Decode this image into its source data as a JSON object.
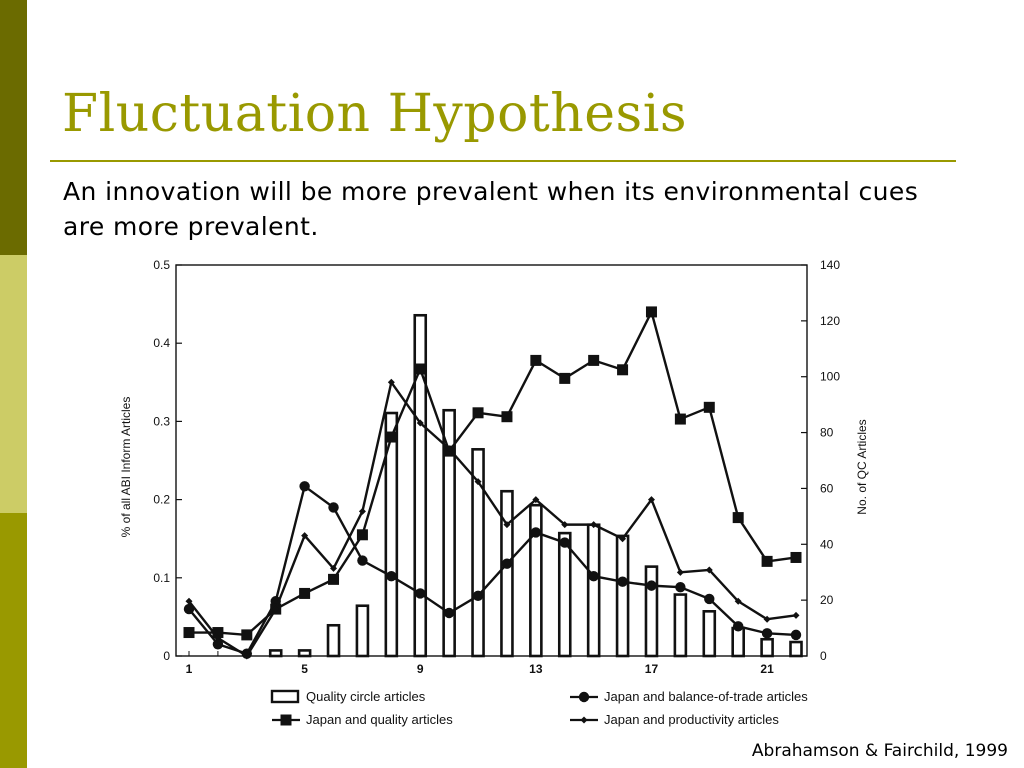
{
  "slide": {
    "title": "Fluctuation Hypothesis",
    "subtitle": "An innovation will be more prevalent when its environmental cues are more prevalent.",
    "source": "Abrahamson & Fairchild, 1999",
    "accent_color": "#999900",
    "band_colors": [
      "#6b6b00",
      "#cccc66",
      "#999900"
    ]
  },
  "chart_data": {
    "type": "bar",
    "title": "",
    "x": [
      1,
      2,
      3,
      4,
      5,
      6,
      7,
      8,
      9,
      10,
      11,
      12,
      13,
      14,
      15,
      16,
      17,
      18,
      19,
      20,
      21,
      22
    ],
    "x_ticks": [
      1,
      5,
      9,
      13,
      17,
      21
    ],
    "xlim": [
      1,
      22
    ],
    "ylabel": "% of all ABI Inform Articles",
    "ylim": [
      0,
      0.5
    ],
    "y_ticks": [
      0,
      0.1,
      0.2,
      0.3,
      0.4,
      0.5
    ],
    "y2label": "No. of QC Articles",
    "y2lim": [
      0,
      140
    ],
    "y2_ticks": [
      0,
      20,
      40,
      60,
      80,
      100,
      120,
      140
    ],
    "grid": false,
    "legend_position": "bottom",
    "series": [
      {
        "name": "Quality circle articles",
        "kind": "bar",
        "axis": "right",
        "values": [
          0,
          0,
          0,
          2,
          2,
          11,
          18,
          87,
          122,
          88,
          74,
          59,
          54,
          44,
          47,
          43,
          32,
          22,
          16,
          10,
          6,
          5
        ]
      },
      {
        "name": "Japan and balance-of-trade articles",
        "kind": "line",
        "marker": "circle",
        "axis": "left",
        "values": [
          0.06,
          0.015,
          0.003,
          0.07,
          0.217,
          0.19,
          0.122,
          0.102,
          0.08,
          0.055,
          0.077,
          0.118,
          0.158,
          0.145,
          0.102,
          0.095,
          0.09,
          0.088,
          0.073,
          0.038,
          0.029,
          0.027
        ]
      },
      {
        "name": "Japan and quality articles",
        "kind": "line",
        "marker": "square",
        "axis": "left",
        "values": [
          0.03,
          0.03,
          0.027,
          0.06,
          0.08,
          0.098,
          0.155,
          0.28,
          0.367,
          0.262,
          0.311,
          0.306,
          0.378,
          0.355,
          0.378,
          0.366,
          0.44,
          0.303,
          0.318,
          0.177,
          0.121,
          0.126
        ]
      },
      {
        "name": "Japan and productivity articles",
        "kind": "line",
        "marker": "diamond",
        "axis": "left",
        "values": [
          0.07,
          0.023,
          0.0,
          0.06,
          0.154,
          0.112,
          0.185,
          0.35,
          0.298,
          0.265,
          0.223,
          0.168,
          0.2,
          0.168,
          0.168,
          0.15,
          0.2,
          0.107,
          0.11,
          0.07,
          0.047,
          0.052
        ]
      }
    ]
  }
}
